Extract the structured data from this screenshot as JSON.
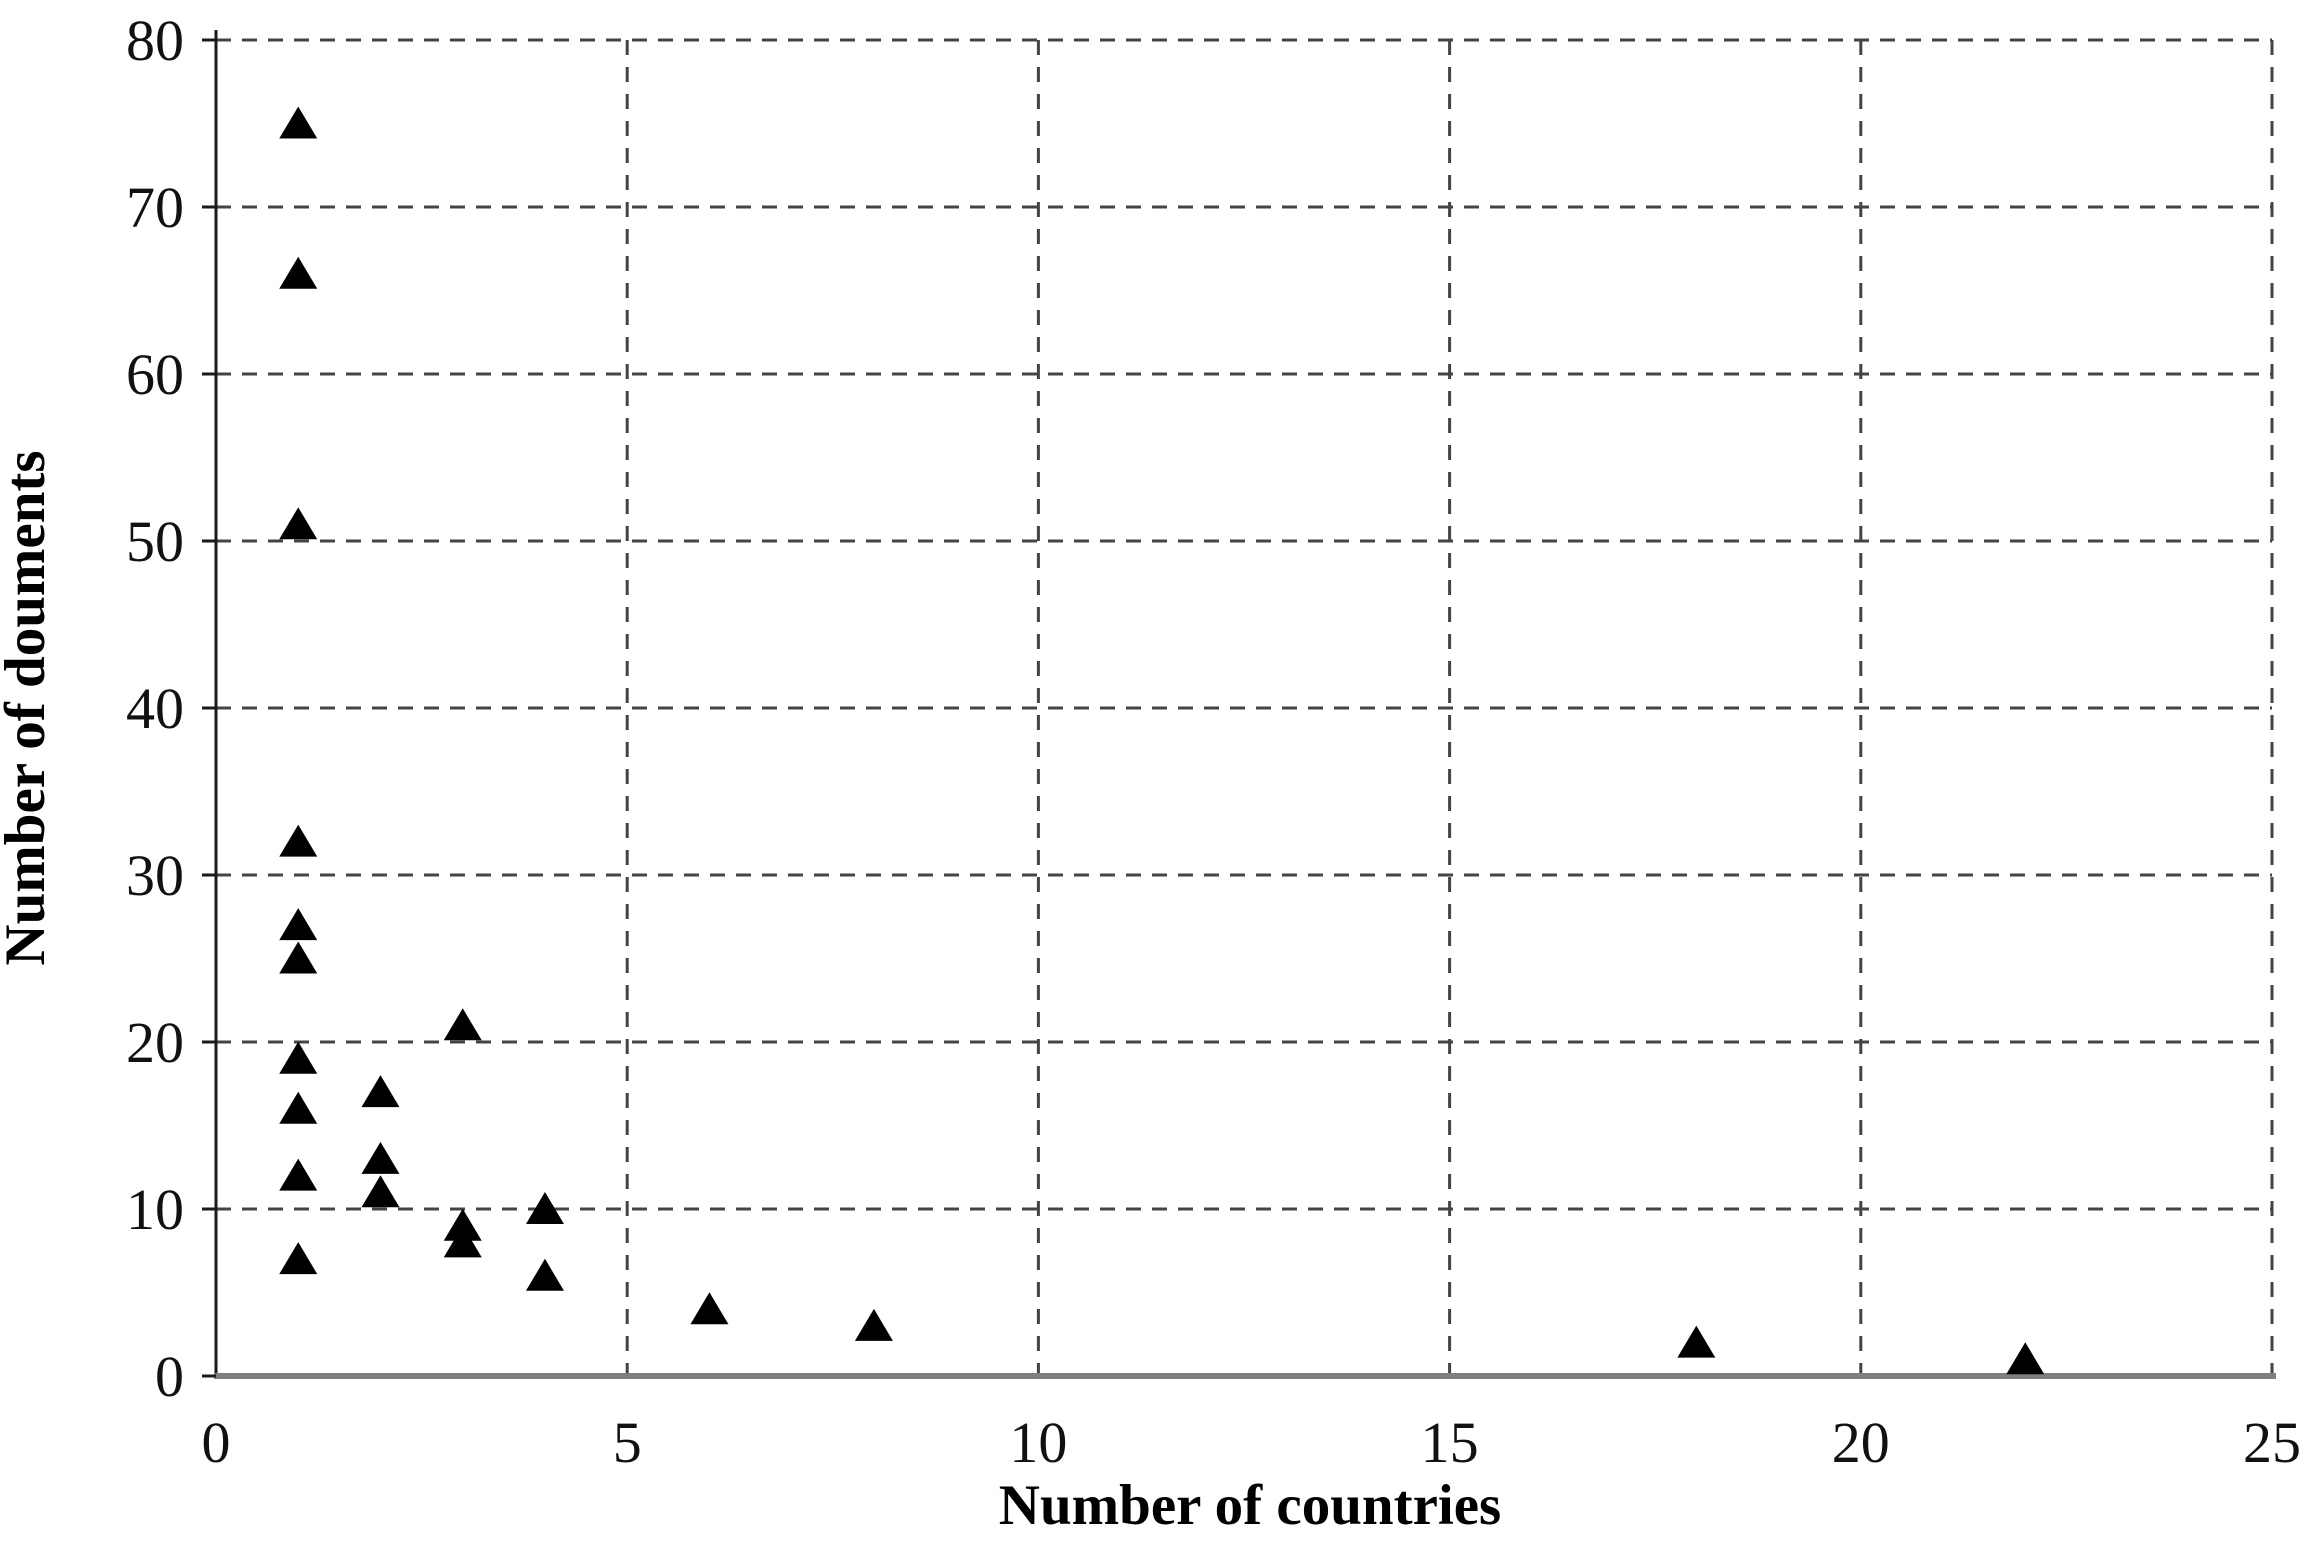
{
  "figure": {
    "background": "#ffffff"
  },
  "colors": {
    "marker": "#000000",
    "grid": "#444444",
    "x_axis_line": "#7f7f7f",
    "y_axis_line": "#1a1a1a",
    "tick_text": "#111111",
    "title_text": "#000000"
  },
  "chart_data": {
    "type": "scatter",
    "title": "",
    "xlabel": "Number of countries",
    "ylabel": "Number of douments",
    "xlim": [
      0,
      25
    ],
    "ylim": [
      0,
      80
    ],
    "x_ticks": [
      0,
      5,
      10,
      15,
      20,
      25
    ],
    "y_ticks": [
      0,
      10,
      20,
      30,
      40,
      50,
      60,
      70,
      80
    ],
    "grid": "dashed",
    "legend_position": "none",
    "marker_shape": "filled-triangle-up",
    "points": [
      {
        "x": 1,
        "y": 75
      },
      {
        "x": 1,
        "y": 66
      },
      {
        "x": 1,
        "y": 51
      },
      {
        "x": 1,
        "y": 32
      },
      {
        "x": 1,
        "y": 27
      },
      {
        "x": 1,
        "y": 25
      },
      {
        "x": 1,
        "y": 19
      },
      {
        "x": 1,
        "y": 16
      },
      {
        "x": 1,
        "y": 12
      },
      {
        "x": 1,
        "y": 7
      },
      {
        "x": 2,
        "y": 17
      },
      {
        "x": 2,
        "y": 13
      },
      {
        "x": 2,
        "y": 11
      },
      {
        "x": 3,
        "y": 21
      },
      {
        "x": 3,
        "y": 9
      },
      {
        "x": 3,
        "y": 8
      },
      {
        "x": 4,
        "y": 10
      },
      {
        "x": 4,
        "y": 6
      },
      {
        "x": 6,
        "y": 4
      },
      {
        "x": 8,
        "y": 3
      },
      {
        "x": 18,
        "y": 2
      },
      {
        "x": 22,
        "y": 1
      }
    ]
  }
}
